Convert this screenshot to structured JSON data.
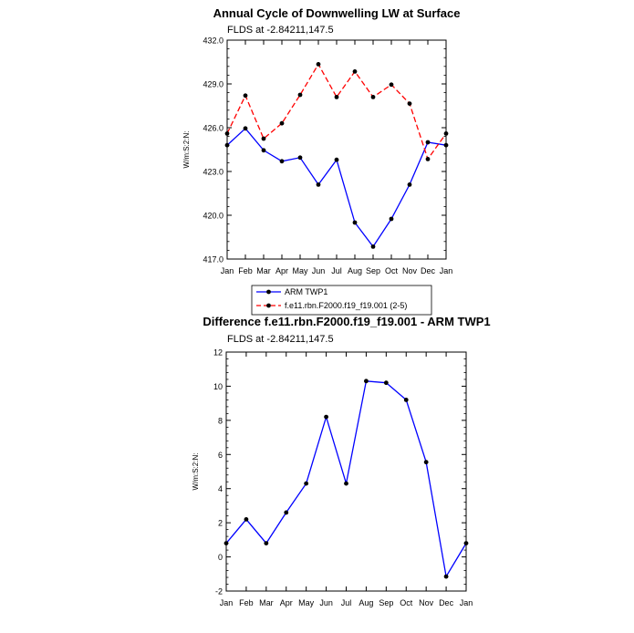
{
  "colors": {
    "arm": "#0000ff",
    "model": "#ff0000",
    "marker": "#000000"
  },
  "chart_data": [
    {
      "type": "line",
      "title": "Annual Cycle of Downwelling LW at Surface",
      "subtitle": "FLDS at -2.84211,147.5",
      "ylabel": "W/m:S:2:N:",
      "categories": [
        "Jan",
        "Feb",
        "Mar",
        "Apr",
        "May",
        "Jun",
        "Jul",
        "Aug",
        "Sep",
        "Oct",
        "Nov",
        "Dec",
        "Jan"
      ],
      "ylim": [
        417.0,
        432.0
      ],
      "yticks": [
        417.0,
        420.0,
        423.0,
        426.0,
        429.0,
        432.0
      ],
      "ytick_labels": [
        "417.0",
        "420.0",
        "423.0",
        "426.0",
        "429.0",
        "432.0"
      ],
      "series": [
        {
          "name": "ARM TWP1",
          "style": "solid",
          "values": [
            424.8,
            425.95,
            424.45,
            423.7,
            423.95,
            422.1,
            423.8,
            419.5,
            417.85,
            419.75,
            422.1,
            425.0,
            424.8
          ]
        },
        {
          "name": "f.e11.rbn.F2000.f19_f19.001 (2-5)",
          "style": "dashed",
          "values": [
            425.6,
            428.2,
            425.25,
            426.3,
            428.25,
            430.35,
            428.1,
            429.85,
            428.1,
            428.95,
            427.65,
            423.85,
            425.6
          ]
        }
      ],
      "legend": {
        "placement": "bottom-center",
        "labels": [
          "ARM TWP1",
          "f.e11.rbn.F2000.f19_f19.001 (2-5)"
        ]
      }
    },
    {
      "type": "line",
      "title": "Difference f.e11.rbn.F2000.f19_f19.001 - ARM TWP1",
      "subtitle": "FLDS at -2.84211,147.5",
      "ylabel": "W/m:S:2:N:",
      "categories": [
        "Jan",
        "Feb",
        "Mar",
        "Apr",
        "May",
        "Jun",
        "Jul",
        "Aug",
        "Sep",
        "Oct",
        "Nov",
        "Dec",
        "Jan"
      ],
      "ylim": [
        -2,
        12
      ],
      "yticks": [
        -2,
        0,
        2,
        4,
        6,
        8,
        10,
        12
      ],
      "ytick_labels": [
        "-2",
        "0",
        "2",
        "4",
        "6",
        "8",
        "10",
        "12"
      ],
      "series": [
        {
          "name": "",
          "style": "solid",
          "values": [
            0.8,
            2.2,
            0.8,
            2.6,
            4.3,
            8.2,
            4.3,
            10.3,
            10.2,
            9.2,
            5.55,
            -1.15,
            0.8
          ]
        }
      ]
    }
  ]
}
